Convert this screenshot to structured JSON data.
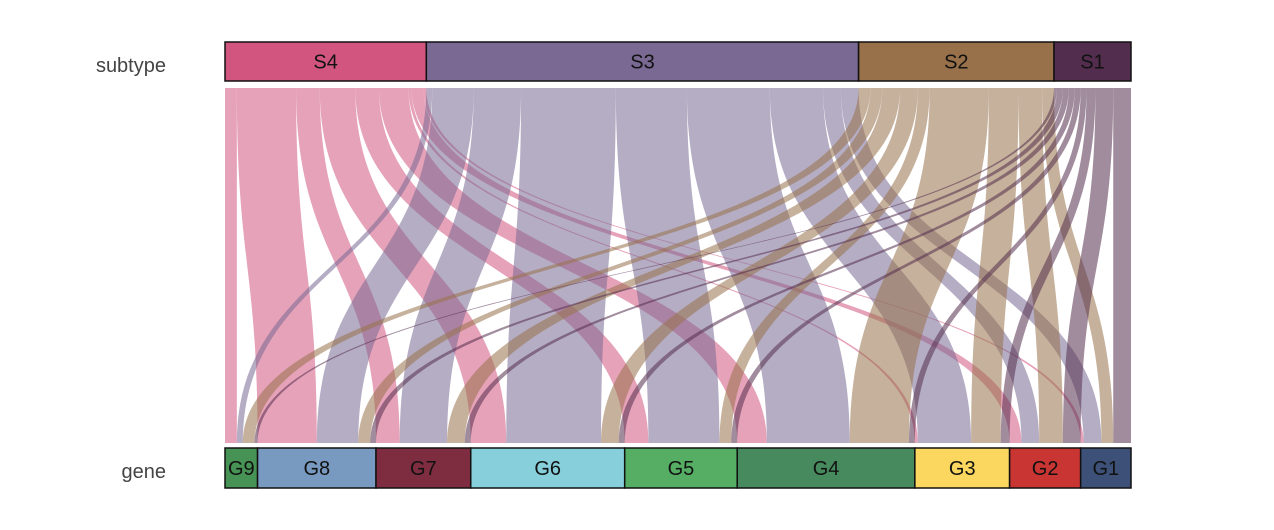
{
  "chart_data": {
    "type": "sankey",
    "axes": [
      {
        "label": "subtype",
        "categories": [
          "S4",
          "S3",
          "S2",
          "S1"
        ]
      },
      {
        "label": "gene",
        "categories": [
          "G9",
          "G8",
          "G7",
          "G6",
          "G5",
          "G4",
          "G3",
          "G2",
          "G1"
        ]
      }
    ],
    "colors": {
      "S4": "#d1557f",
      "S3": "#796993",
      "S2": "#98714b",
      "S1": "#532d4d",
      "G9": "#479355",
      "G8": "#789ac0",
      "G7": "#7e2d40",
      "G6": "#86cfdb",
      "G5": "#56ae65",
      "G4": "#468a5d",
      "G3": "#fbd75f",
      "G2": "#c93533",
      "G1": "#3c5078"
    },
    "flows": [
      {
        "from": "S4",
        "to": "G9",
        "value": 2
      },
      {
        "from": "S4",
        "to": "G8",
        "value": 10
      },
      {
        "from": "S4",
        "to": "G7",
        "value": 4
      },
      {
        "from": "S4",
        "to": "G6",
        "value": 6
      },
      {
        "from": "S4",
        "to": "G5",
        "value": 4
      },
      {
        "from": "S4",
        "to": "G4",
        "value": 5
      },
      {
        "from": "S4",
        "to": "G3",
        "value": 0.5
      },
      {
        "from": "S4",
        "to": "G2",
        "value": 2
      },
      {
        "from": "S4",
        "to": "G1",
        "value": 0.5
      },
      {
        "from": "S3",
        "to": "G9",
        "value": 1
      },
      {
        "from": "S3",
        "to": "G8",
        "value": 7
      },
      {
        "from": "S3",
        "to": "G7",
        "value": 8
      },
      {
        "from": "S3",
        "to": "G6",
        "value": 16
      },
      {
        "from": "S3",
        "to": "G5",
        "value": 12
      },
      {
        "from": "S3",
        "to": "G4",
        "value": 14
      },
      {
        "from": "S3",
        "to": "G3",
        "value": 9
      },
      {
        "from": "S3",
        "to": "G2",
        "value": 3
      },
      {
        "from": "S3",
        "to": "G1",
        "value": 3
      },
      {
        "from": "S2",
        "to": "G9",
        "value": 2
      },
      {
        "from": "S2",
        "to": "G8",
        "value": 2
      },
      {
        "from": "S2",
        "to": "G7",
        "value": 3
      },
      {
        "from": "S2",
        "to": "G6",
        "value": 3
      },
      {
        "from": "S2",
        "to": "G5",
        "value": 2
      },
      {
        "from": "S2",
        "to": "G4",
        "value": 10
      },
      {
        "from": "S2",
        "to": "G3",
        "value": 5
      },
      {
        "from": "S2",
        "to": "G2",
        "value": 4
      },
      {
        "from": "S2",
        "to": "G1",
        "value": 2
      },
      {
        "from": "S1",
        "to": "G9",
        "value": 0.5
      },
      {
        "from": "S1",
        "to": "G8",
        "value": 1
      },
      {
        "from": "S1",
        "to": "G7",
        "value": 1
      },
      {
        "from": "S1",
        "to": "G6",
        "value": 1
      },
      {
        "from": "S1",
        "to": "G5",
        "value": 1
      },
      {
        "from": "S1",
        "to": "G4",
        "value": 1
      },
      {
        "from": "S1",
        "to": "G3",
        "value": 1.5
      },
      {
        "from": "S1",
        "to": "G2",
        "value": 3
      },
      {
        "from": "S1",
        "to": "G1",
        "value": 3
      }
    ]
  }
}
